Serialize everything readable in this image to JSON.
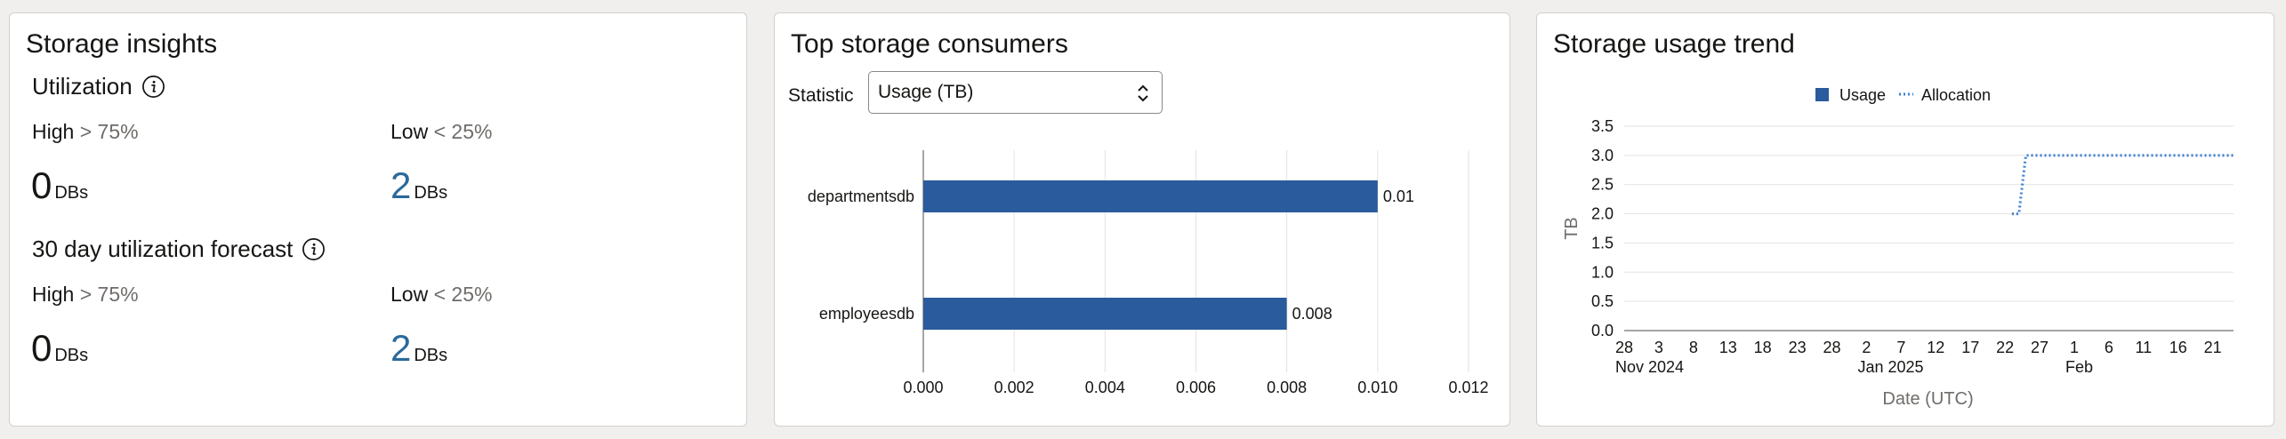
{
  "insights": {
    "title": "Storage insights",
    "utilization": {
      "title": "Utilization",
      "high_label": "High",
      "high_threshold": "> 75%",
      "low_label": "Low",
      "low_threshold": "< 25%",
      "high_value": "0",
      "high_unit": "DBs",
      "low_value": "2",
      "low_unit": "DBs"
    },
    "forecast": {
      "title": "30 day utilization forecast",
      "high_label": "High",
      "high_threshold": "> 75%",
      "low_label": "Low",
      "low_threshold": "< 25%",
      "high_value": "0",
      "high_unit": "DBs",
      "low_value": "2",
      "low_unit": "DBs"
    }
  },
  "consumers": {
    "title": "Top storage consumers",
    "statistic_label": "Statistic",
    "statistic_value": "Usage (TB)"
  },
  "trend": {
    "title": "Storage usage trend"
  },
  "colors": {
    "bar": "#2a5b9c",
    "usage": "#2a5b9c",
    "allocation": "#3b7fd4",
    "blue_value": "#2b6a9b"
  },
  "chart_data": [
    {
      "type": "bar",
      "orientation": "horizontal",
      "categories": [
        "departmentsdb",
        "employeesdb"
      ],
      "values": [
        0.01,
        0.008
      ],
      "data_labels": [
        "0.01",
        "0.008"
      ],
      "xlim": [
        0,
        0.012
      ],
      "x_ticks": [
        "0.000",
        "0.002",
        "0.004",
        "0.006",
        "0.008",
        "0.010",
        "0.012"
      ],
      "grid": true
    },
    {
      "type": "line",
      "legend": [
        "Usage",
        "Allocation"
      ],
      "legend_position": "top",
      "ylabel": "TB",
      "xlabel": "Date (UTC)",
      "ylim": [
        0,
        3.5
      ],
      "y_ticks": [
        "0.0",
        "0.5",
        "1.0",
        "1.5",
        "2.0",
        "2.5",
        "3.0",
        "3.5"
      ],
      "x_start": "2024-11-28",
      "x_end": "2025-02-24",
      "x_ticks": [
        {
          "date": "2024-11-28",
          "label": "28",
          "sub": "Nov 2024"
        },
        {
          "date": "2024-12-03",
          "label": "3"
        },
        {
          "date": "2024-12-08",
          "label": "8"
        },
        {
          "date": "2024-12-13",
          "label": "13"
        },
        {
          "date": "2024-12-18",
          "label": "18"
        },
        {
          "date": "2024-12-23",
          "label": "23"
        },
        {
          "date": "2024-12-28",
          "label": "28"
        },
        {
          "date": "2025-01-02",
          "label": "2",
          "sub": "Jan 2025"
        },
        {
          "date": "2025-01-07",
          "label": "7"
        },
        {
          "date": "2025-01-12",
          "label": "12"
        },
        {
          "date": "2025-01-17",
          "label": "17"
        },
        {
          "date": "2025-01-22",
          "label": "22"
        },
        {
          "date": "2025-01-27",
          "label": "27"
        },
        {
          "date": "2025-02-01",
          "label": "1",
          "sub": "Feb"
        },
        {
          "date": "2025-02-06",
          "label": "6"
        },
        {
          "date": "2025-02-11",
          "label": "11"
        },
        {
          "date": "2025-02-16",
          "label": "16"
        },
        {
          "date": "2025-02-21",
          "label": "21"
        }
      ],
      "series": [
        {
          "name": "Usage",
          "points": []
        },
        {
          "name": "Allocation",
          "style": "dotted",
          "points": [
            {
              "x": "2025-01-23",
              "y": 2.0
            },
            {
              "x": "2025-01-24",
              "y": 2.0
            },
            {
              "x": "2025-01-25",
              "y": 3.0
            },
            {
              "x": "2025-02-24",
              "y": 3.0
            }
          ]
        }
      ],
      "grid": true
    }
  ]
}
